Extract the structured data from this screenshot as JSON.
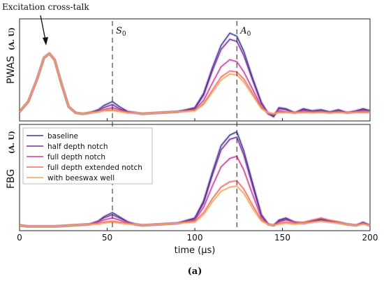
{
  "chart_data": {
    "type": "line",
    "xlabel": "time (μs)",
    "xlim": [
      0,
      200
    ],
    "x_ticks": [
      "0",
      "50",
      "100",
      "150",
      "200"
    ],
    "caption": "(a)",
    "annotation": "Excitation cross-talk",
    "markers": [
      {
        "x": 53,
        "label": "S",
        "sub": "0"
      },
      {
        "x": 124,
        "label": "A",
        "sub": "0"
      }
    ],
    "panels": [
      {
        "name": "PWAS",
        "unit": "(A. U)",
        "ylim": [
          0,
          1
        ],
        "series": [
          {
            "name": "baseline",
            "color": "#3b3b8f",
            "x": [
              0,
              5,
              10,
              14,
              17,
              20,
              24,
              28,
              32,
              36,
              40,
              45,
              48,
              53,
              57,
              62,
              66,
              70,
              80,
              90,
              100,
              105,
              110,
              115,
              120,
              124,
              128,
              133,
              138,
              142,
              145,
              148,
              152,
              157,
              162,
              167,
              172,
              177,
              182,
              187,
              192,
              196,
              200
            ],
            "y": [
              0.09,
              0.19,
              0.41,
              0.62,
              0.66,
              0.6,
              0.36,
              0.14,
              0.08,
              0.07,
              0.08,
              0.11,
              0.15,
              0.19,
              0.14,
              0.09,
              0.08,
              0.07,
              0.08,
              0.09,
              0.13,
              0.27,
              0.52,
              0.74,
              0.86,
              0.83,
              0.68,
              0.42,
              0.18,
              0.07,
              0.04,
              0.13,
              0.12,
              0.08,
              0.12,
              0.1,
              0.11,
              0.09,
              0.11,
              0.08,
              0.1,
              0.12,
              0.1
            ]
          },
          {
            "name": "half depth notch",
            "color": "#7a2f9a",
            "x": [
              0,
              5,
              10,
              14,
              17,
              20,
              24,
              28,
              32,
              36,
              40,
              45,
              48,
              53,
              57,
              62,
              66,
              70,
              80,
              90,
              100,
              105,
              110,
              115,
              120,
              124,
              128,
              133,
              138,
              142,
              145,
              148,
              152,
              157,
              162,
              167,
              172,
              177,
              182,
              187,
              192,
              196,
              200
            ],
            "y": [
              0.09,
              0.19,
              0.41,
              0.62,
              0.66,
              0.6,
              0.36,
              0.14,
              0.08,
              0.07,
              0.08,
              0.1,
              0.13,
              0.16,
              0.12,
              0.09,
              0.08,
              0.07,
              0.08,
              0.09,
              0.12,
              0.25,
              0.49,
              0.7,
              0.8,
              0.78,
              0.64,
              0.4,
              0.17,
              0.07,
              0.05,
              0.12,
              0.11,
              0.08,
              0.11,
              0.09,
              0.1,
              0.08,
              0.1,
              0.08,
              0.09,
              0.11,
              0.1
            ]
          },
          {
            "name": "full depth notch",
            "color": "#c2409a",
            "x": [
              0,
              5,
              10,
              14,
              17,
              20,
              24,
              28,
              32,
              36,
              40,
              45,
              48,
              53,
              57,
              62,
              66,
              70,
              80,
              90,
              100,
              105,
              110,
              115,
              120,
              124,
              128,
              133,
              138,
              142,
              145,
              148,
              152,
              157,
              162,
              167,
              172,
              177,
              182,
              187,
              192,
              196,
              200
            ],
            "y": [
              0.09,
              0.19,
              0.41,
              0.62,
              0.66,
              0.6,
              0.36,
              0.14,
              0.08,
              0.07,
              0.08,
              0.09,
              0.11,
              0.13,
              0.11,
              0.08,
              0.08,
              0.07,
              0.08,
              0.09,
              0.11,
              0.2,
              0.37,
              0.53,
              0.6,
              0.58,
              0.48,
              0.31,
              0.14,
              0.07,
              0.06,
              0.1,
              0.09,
              0.08,
              0.1,
              0.09,
              0.09,
              0.08,
              0.09,
              0.08,
              0.09,
              0.1,
              0.09
            ]
          },
          {
            "name": "full depth extended notch",
            "color": "#ee6a6a",
            "x": [
              0,
              5,
              10,
              14,
              17,
              20,
              24,
              28,
              32,
              36,
              40,
              45,
              48,
              53,
              57,
              62,
              66,
              70,
              80,
              90,
              100,
              105,
              110,
              115,
              120,
              124,
              128,
              133,
              138,
              142,
              145,
              148,
              152,
              157,
              162,
              167,
              172,
              177,
              182,
              187,
              192,
              196,
              200
            ],
            "y": [
              0.09,
              0.19,
              0.41,
              0.62,
              0.66,
              0.6,
              0.36,
              0.14,
              0.08,
              0.07,
              0.08,
              0.09,
              0.1,
              0.11,
              0.1,
              0.08,
              0.08,
              0.07,
              0.08,
              0.09,
              0.1,
              0.17,
              0.3,
              0.43,
              0.49,
              0.48,
              0.41,
              0.27,
              0.13,
              0.08,
              0.07,
              0.09,
              0.09,
              0.08,
              0.09,
              0.08,
              0.09,
              0.08,
              0.09,
              0.08,
              0.09,
              0.09,
              0.09
            ]
          },
          {
            "name": "with beeswax well",
            "color": "#f2a55a",
            "x": [
              0,
              5,
              10,
              14,
              17,
              20,
              24,
              28,
              32,
              36,
              40,
              45,
              48,
              53,
              57,
              62,
              66,
              70,
              80,
              90,
              100,
              105,
              110,
              115,
              120,
              124,
              128,
              133,
              138,
              142,
              145,
              148,
              152,
              157,
              162,
              167,
              172,
              177,
              182,
              187,
              192,
              196,
              200
            ],
            "y": [
              0.09,
              0.19,
              0.41,
              0.62,
              0.66,
              0.6,
              0.36,
              0.14,
              0.08,
              0.07,
              0.08,
              0.09,
              0.1,
              0.1,
              0.09,
              0.08,
              0.08,
              0.07,
              0.08,
              0.09,
              0.1,
              0.16,
              0.28,
              0.4,
              0.46,
              0.45,
              0.38,
              0.25,
              0.12,
              0.08,
              0.07,
              0.08,
              0.08,
              0.08,
              0.08,
              0.08,
              0.08,
              0.08,
              0.08,
              0.08,
              0.08,
              0.08,
              0.08
            ]
          }
        ]
      },
      {
        "name": "FBG",
        "unit": "(A. U)",
        "ylim": [
          0,
          1
        ],
        "series": [
          {
            "name": "baseline",
            "color": "#3b3b8f",
            "x": [
              0,
              5,
              10,
              20,
              30,
              40,
              45,
              48,
              53,
              57,
              62,
              66,
              70,
              80,
              90,
              100,
              105,
              110,
              115,
              120,
              124,
              128,
              133,
              138,
              142,
              145,
              148,
              152,
              157,
              162,
              167,
              172,
              177,
              182,
              187,
              192,
              196,
              200
            ],
            "y": [
              0.05,
              0.04,
              0.04,
              0.04,
              0.05,
              0.06,
              0.09,
              0.13,
              0.17,
              0.13,
              0.08,
              0.06,
              0.05,
              0.06,
              0.07,
              0.12,
              0.28,
              0.55,
              0.8,
              0.9,
              0.93,
              0.75,
              0.45,
              0.15,
              0.06,
              0.05,
              0.1,
              0.12,
              0.08,
              0.07,
              0.09,
              0.11,
              0.09,
              0.08,
              0.06,
              0.05,
              0.08,
              0.05
            ]
          },
          {
            "name": "half depth notch",
            "color": "#7a2f9a",
            "x": [
              0,
              5,
              10,
              20,
              30,
              40,
              45,
              48,
              53,
              57,
              62,
              66,
              70,
              80,
              90,
              100,
              105,
              110,
              115,
              120,
              124,
              128,
              133,
              138,
              142,
              145,
              148,
              152,
              157,
              162,
              167,
              172,
              177,
              182,
              187,
              192,
              196,
              200
            ],
            "y": [
              0.05,
              0.04,
              0.04,
              0.04,
              0.05,
              0.06,
              0.09,
              0.12,
              0.15,
              0.12,
              0.08,
              0.06,
              0.05,
              0.06,
              0.07,
              0.11,
              0.26,
              0.52,
              0.76,
              0.86,
              0.88,
              0.71,
              0.42,
              0.14,
              0.06,
              0.05,
              0.09,
              0.11,
              0.08,
              0.07,
              0.09,
              0.1,
              0.09,
              0.08,
              0.06,
              0.05,
              0.07,
              0.05
            ]
          },
          {
            "name": "full depth notch",
            "color": "#c2409a",
            "x": [
              0,
              5,
              10,
              20,
              30,
              40,
              45,
              48,
              53,
              57,
              62,
              66,
              70,
              80,
              90,
              100,
              105,
              110,
              115,
              120,
              124,
              128,
              133,
              138,
              142,
              145,
              148,
              152,
              157,
              162,
              167,
              172,
              177,
              182,
              187,
              192,
              196,
              200
            ],
            "y": [
              0.05,
              0.04,
              0.04,
              0.04,
              0.05,
              0.06,
              0.08,
              0.1,
              0.12,
              0.1,
              0.07,
              0.06,
              0.05,
              0.06,
              0.07,
              0.1,
              0.22,
              0.42,
              0.6,
              0.68,
              0.7,
              0.57,
              0.34,
              0.12,
              0.06,
              0.05,
              0.08,
              0.1,
              0.08,
              0.07,
              0.08,
              0.09,
              0.08,
              0.07,
              0.06,
              0.05,
              0.07,
              0.05
            ]
          },
          {
            "name": "full depth extended notch",
            "color": "#ee6a6a",
            "x": [
              0,
              5,
              10,
              20,
              30,
              40,
              45,
              48,
              53,
              57,
              62,
              66,
              70,
              80,
              90,
              100,
              105,
              110,
              115,
              120,
              124,
              128,
              133,
              138,
              142,
              145,
              148,
              152,
              157,
              162,
              167,
              172,
              177,
              182,
              187,
              192,
              196,
              200
            ],
            "y": [
              0.05,
              0.04,
              0.04,
              0.04,
              0.05,
              0.06,
              0.07,
              0.08,
              0.09,
              0.08,
              0.07,
              0.06,
              0.05,
              0.06,
              0.07,
              0.09,
              0.17,
              0.3,
              0.41,
              0.46,
              0.47,
              0.39,
              0.24,
              0.1,
              0.06,
              0.05,
              0.07,
              0.08,
              0.07,
              0.08,
              0.1,
              0.12,
              0.1,
              0.08,
              0.06,
              0.05,
              0.07,
              0.05
            ]
          },
          {
            "name": "with beeswax well",
            "color": "#f2a55a",
            "x": [
              0,
              5,
              10,
              20,
              30,
              40,
              45,
              48,
              53,
              57,
              62,
              66,
              70,
              80,
              90,
              100,
              105,
              110,
              115,
              120,
              124,
              128,
              133,
              138,
              142,
              145,
              148,
              152,
              157,
              162,
              167,
              172,
              177,
              182,
              187,
              192,
              196,
              200
            ],
            "y": [
              0.05,
              0.04,
              0.04,
              0.04,
              0.05,
              0.06,
              0.06,
              0.07,
              0.08,
              0.07,
              0.06,
              0.06,
              0.05,
              0.06,
              0.07,
              0.08,
              0.15,
              0.27,
              0.37,
              0.41,
              0.42,
              0.35,
              0.21,
              0.09,
              0.06,
              0.05,
              0.06,
              0.07,
              0.06,
              0.07,
              0.08,
              0.09,
              0.08,
              0.07,
              0.06,
              0.05,
              0.06,
              0.05
            ]
          }
        ]
      }
    ],
    "legend": {
      "placement": "top-left of lower panel",
      "entries": [
        "baseline",
        "half depth notch",
        "full depth notch",
        "full depth extended notch",
        "with beeswax well"
      ]
    }
  }
}
